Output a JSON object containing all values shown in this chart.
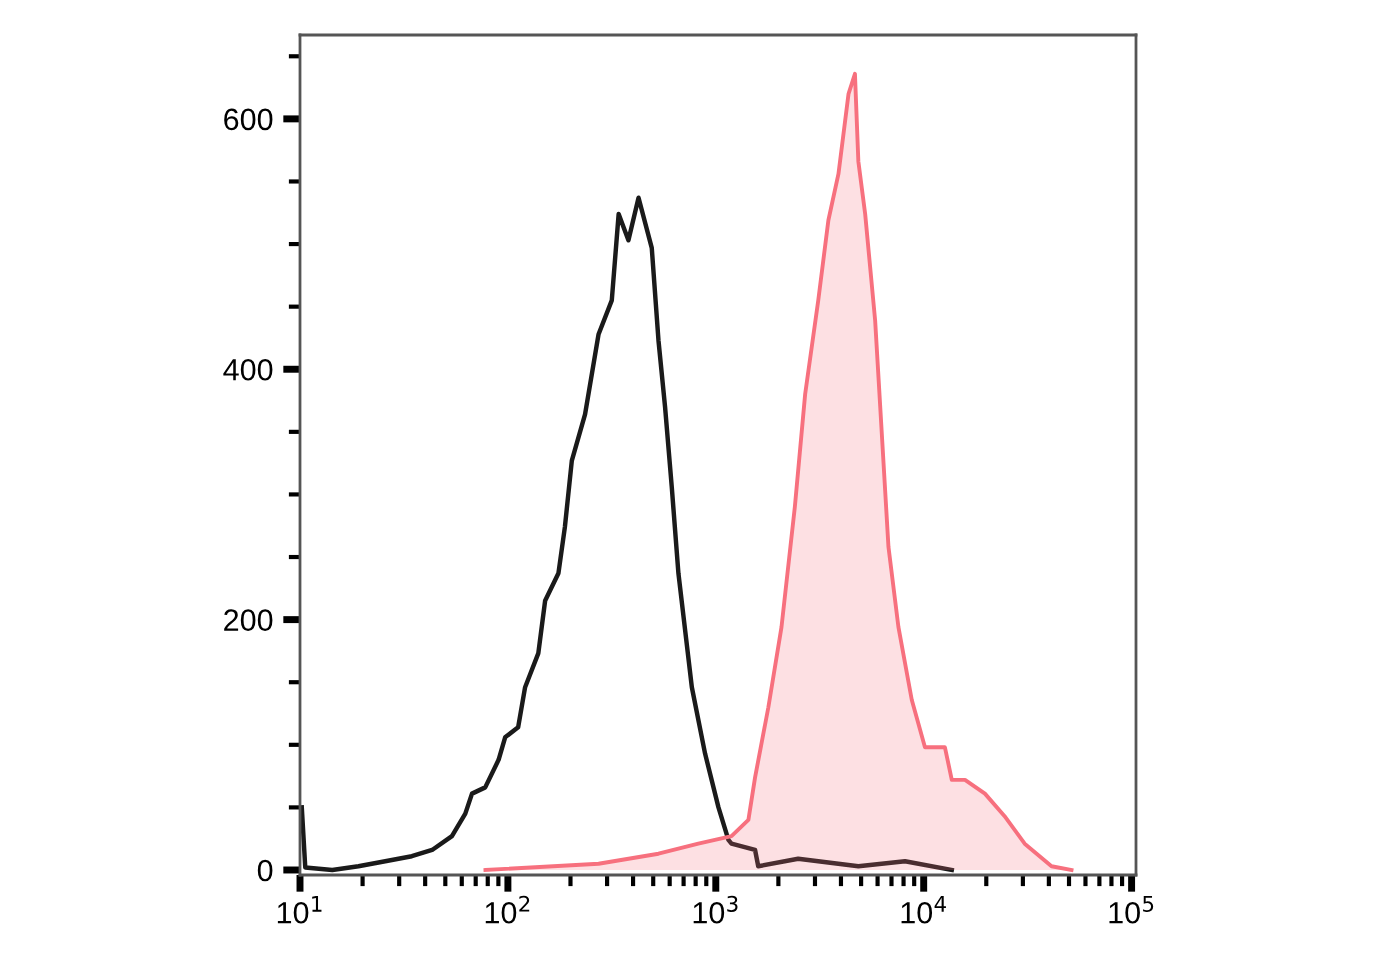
{
  "chart_data": {
    "type": "line",
    "log": "x",
    "xlim": [
      10,
      105000
    ],
    "ylim": [
      -4,
      667
    ],
    "xticks": [
      {
        "value": 10,
        "label": "10$^{1}$"
      },
      {
        "value": 20,
        "label": null
      },
      {
        "value": 30,
        "label": null
      },
      {
        "value": 40,
        "label": null
      },
      {
        "value": 50,
        "label": null
      },
      {
        "value": 60,
        "label": null
      },
      {
        "value": 70,
        "label": null
      },
      {
        "value": 80,
        "label": null
      },
      {
        "value": 90,
        "label": null
      },
      {
        "value": 100,
        "label": "10$^{2}$"
      },
      {
        "value": 200,
        "label": null
      },
      {
        "value": 300,
        "label": null
      },
      {
        "value": 400,
        "label": null
      },
      {
        "value": 500,
        "label": null
      },
      {
        "value": 600,
        "label": null
      },
      {
        "value": 700,
        "label": null
      },
      {
        "value": 800,
        "label": null
      },
      {
        "value": 900,
        "label": null
      },
      {
        "value": 1000,
        "label": "10$^{3}$"
      },
      {
        "value": 2000,
        "label": null
      },
      {
        "value": 3000,
        "label": null
      },
      {
        "value": 4000,
        "label": null
      },
      {
        "value": 5000,
        "label": null
      },
      {
        "value": 6000,
        "label": null
      },
      {
        "value": 7000,
        "label": null
      },
      {
        "value": 8000,
        "label": null
      },
      {
        "value": 9000,
        "label": null
      },
      {
        "value": 10000,
        "label": "10$^{4}$"
      },
      {
        "value": 20000,
        "label": null
      },
      {
        "value": 30000,
        "label": null
      },
      {
        "value": 40000,
        "label": null
      },
      {
        "value": 50000,
        "label": null
      },
      {
        "value": 60000,
        "label": null
      },
      {
        "value": 70000,
        "label": null
      },
      {
        "value": 80000,
        "label": null
      },
      {
        "value": 90000,
        "label": null
      },
      {
        "value": 100000,
        "label": "10$^{5}$"
      }
    ],
    "yticks": [
      0,
      {
        "value": 50,
        "label": null
      },
      {
        "value": 100,
        "label": null
      },
      {
        "value": 150,
        "label": null
      },
      200,
      {
        "value": 250,
        "label": null
      },
      {
        "value": 300,
        "label": null
      },
      {
        "value": 350,
        "label": null
      },
      400,
      {
        "value": 450,
        "label": null
      },
      {
        "value": 500,
        "label": null
      },
      {
        "value": 550,
        "label": null
      },
      600,
      {
        "value": 650,
        "label": null
      }
    ],
    "series": [
      {
        "color": "#1a1a1a",
        "x": [
          10.2,
          10.6,
          14.3,
          19.1,
          25.7,
          34.5,
          43.2,
          53.8,
          62.4,
          67.2,
          77.8,
          90.2,
          97,
          112,
          121,
          140,
          151,
          175,
          188,
          203,
          235,
          273,
          316,
          341,
          380,
          425,
          492,
          530,
          570,
          614,
          661,
          767,
          888,
          1030,
          1150,
          1190,
          1545,
          1600,
          2490,
          4850,
          8130,
          13650
        ],
        "values": [
          50,
          2,
          0,
          3,
          7,
          11,
          16,
          27,
          45,
          61,
          66,
          88,
          106,
          114,
          146,
          173,
          215,
          237,
          274,
          327,
          364,
          428,
          455,
          524,
          503,
          537,
          497,
          423,
          370,
          306,
          237,
          146,
          93,
          50,
          24,
          21,
          16,
          3,
          9,
          3,
          7,
          0
        ]
      },
      {
        "type": "area",
        "color": "#f7707e",
        "x": [
          78,
          273,
          530,
          824,
          1190,
          1435,
          1545,
          1790,
          2070,
          2400,
          2690,
          3110,
          3480,
          3890,
          4350,
          4670,
          4850,
          5230,
          5840,
          6770,
          7560,
          8760,
          10140,
          12650,
          13650,
          15800,
          19700,
          24500,
          30600,
          41200,
          51400
        ],
        "values": [
          0,
          5,
          13,
          21,
          27,
          40,
          74,
          130,
          194,
          290,
          380,
          455,
          519,
          556,
          620,
          636,
          566,
          524,
          439,
          258,
          194,
          136,
          98,
          98,
          72,
          72,
          61,
          43,
          21,
          3,
          0
        ]
      }
    ]
  }
}
